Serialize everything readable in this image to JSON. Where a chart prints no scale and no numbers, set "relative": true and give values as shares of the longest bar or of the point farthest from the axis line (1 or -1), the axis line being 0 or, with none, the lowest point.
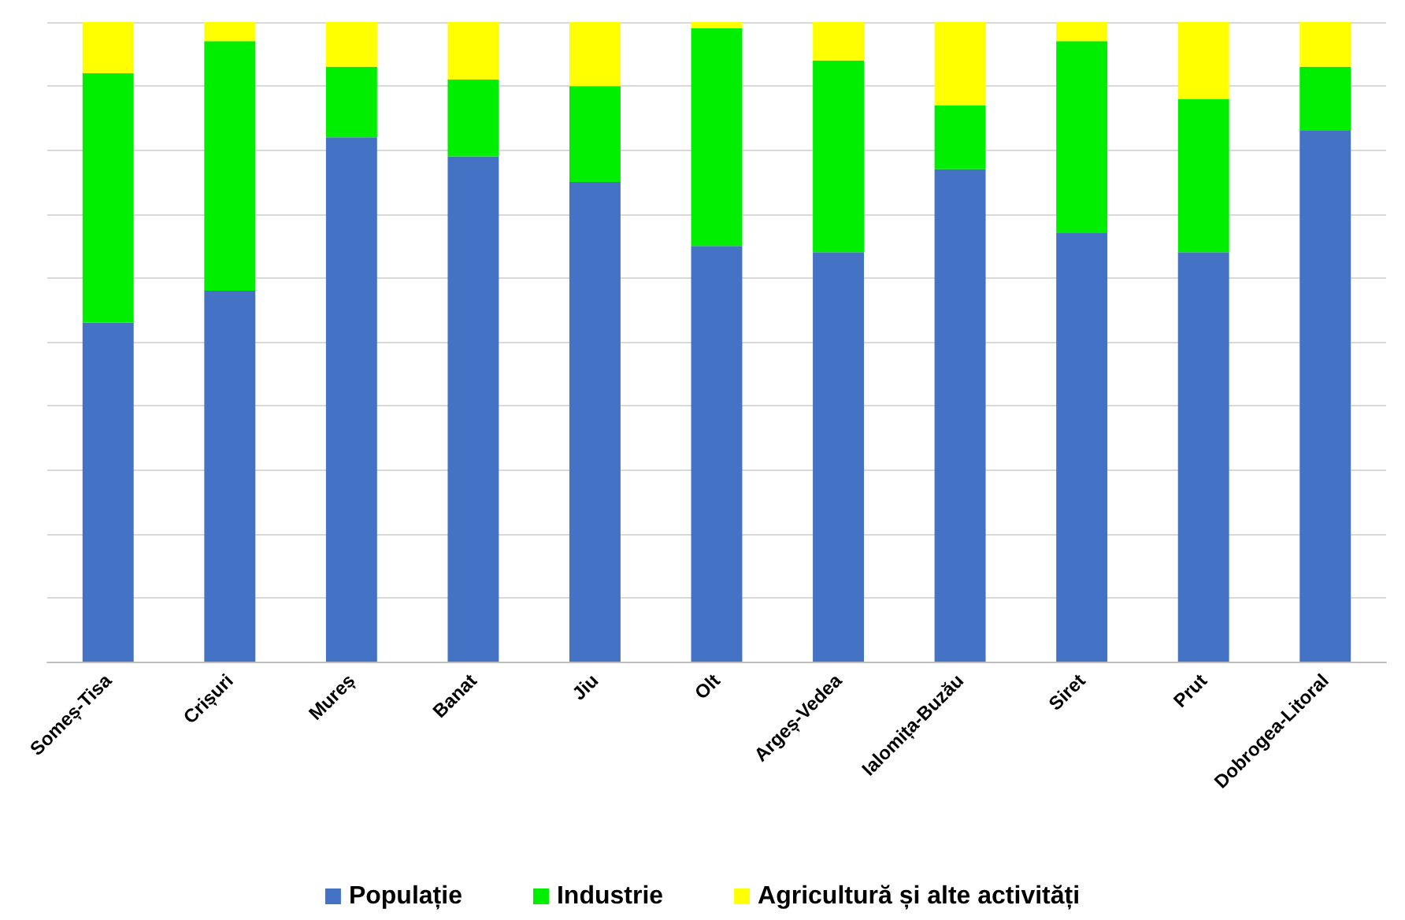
{
  "chart_data": {
    "type": "bar",
    "stacked": true,
    "relative": true,
    "grid": "y",
    "legend": "bottom",
    "categories": [
      "Someș-Tisa",
      "Crișuri",
      "Mureș",
      "Banat",
      "Jiu",
      "Olt",
      "Argeș-Vedea",
      "Ialomița-Buzău",
      "Siret",
      "Prut",
      "Dobrogea-Litoral"
    ],
    "series": [
      {
        "name": "Populație",
        "color": "#4472c4",
        "values": [
          0.53,
          0.58,
          0.82,
          0.79,
          0.75,
          0.65,
          0.64,
          0.77,
          0.67,
          0.64,
          0.83
        ]
      },
      {
        "name": "Industrie",
        "color": "#00ee00",
        "values": [
          0.39,
          0.39,
          0.11,
          0.12,
          0.15,
          0.34,
          0.3,
          0.1,
          0.3,
          0.24,
          0.1
        ]
      },
      {
        "name": "Agricultură și alte activități",
        "color": "#ffff00",
        "values": [
          0.08,
          0.03,
          0.07,
          0.09,
          0.1,
          0.01,
          0.06,
          0.13,
          0.03,
          0.12,
          0.07
        ]
      }
    ]
  }
}
